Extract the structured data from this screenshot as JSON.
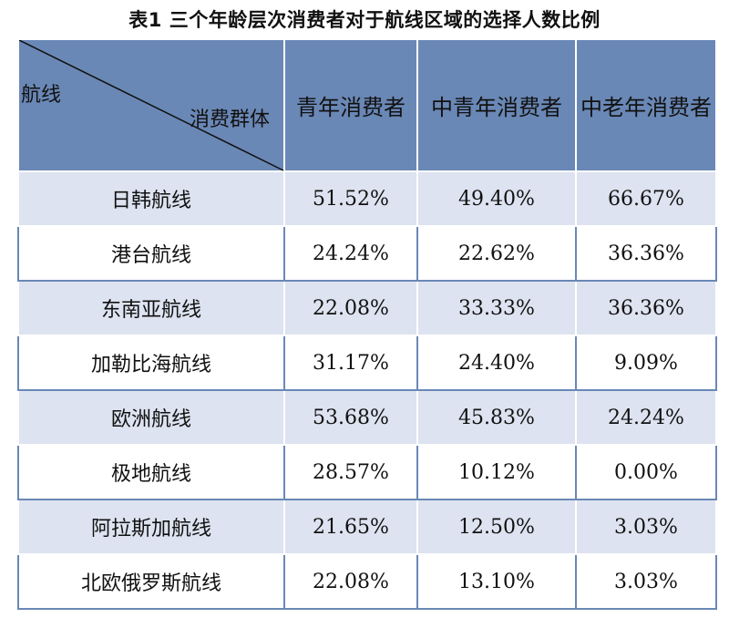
{
  "title": "表1 三个年龄层次消费者对于航线区域的选择人数比例",
  "header": {
    "corner_top": "航线",
    "corner_bottom": "消费群体",
    "columns": [
      "青年消费者",
      "中青年消费者",
      "中老年消费者"
    ]
  },
  "rows": [
    {
      "route": "日韩航线",
      "values": [
        "51.52%",
        "49.40%",
        "66.67%"
      ]
    },
    {
      "route": "港台航线",
      "values": [
        "24.24%",
        "22.62%",
        "36.36%"
      ]
    },
    {
      "route": "东南亚航线",
      "values": [
        "22.08%",
        "33.33%",
        "36.36%"
      ]
    },
    {
      "route": "加勒比海航线",
      "values": [
        "31.17%",
        "24.40%",
        "9.09%"
      ]
    },
    {
      "route": "欧洲航线",
      "values": [
        "53.68%",
        "45.83%",
        "24.24%"
      ]
    },
    {
      "route": "极地航线",
      "values": [
        "28.57%",
        "10.12%",
        "0.00%"
      ]
    },
    {
      "route": "阿拉斯加航线",
      "values": [
        "21.65%",
        "12.50%",
        "3.03%"
      ]
    },
    {
      "route": "北欧俄罗斯航线",
      "values": [
        "22.08%",
        "13.10%",
        "3.03%"
      ]
    }
  ],
  "colors": {
    "header_bg": "#6a88b6",
    "band_bg": "#dde3f0"
  }
}
